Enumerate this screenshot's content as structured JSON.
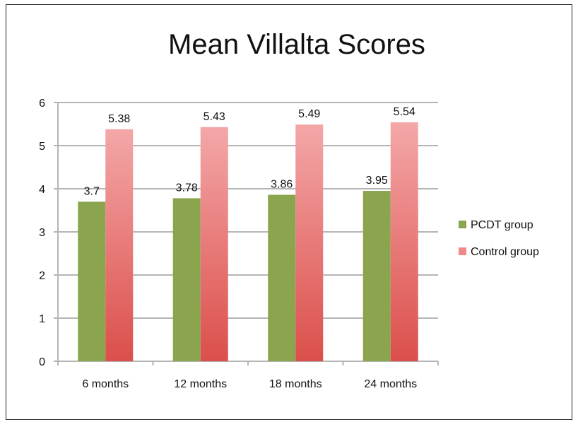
{
  "chart_data": {
    "type": "bar",
    "title": "Mean Villalta Scores",
    "xlabel": "",
    "ylabel": "",
    "categories": [
      "6 months",
      "12 months",
      "18 months",
      "24 months"
    ],
    "series": [
      {
        "name": "PCDT group",
        "values": [
          3.7,
          3.78,
          3.86,
          3.95
        ],
        "color": "#8aa54e"
      },
      {
        "name": "Control group",
        "values": [
          5.38,
          5.43,
          5.49,
          5.54
        ],
        "color_top": "#f4a7a8",
        "color_bottom": "#db4f4b"
      }
    ],
    "data_labels": [
      [
        "3.7",
        "3.78",
        "3.86",
        "3.95"
      ],
      [
        "5.38",
        "5.43",
        "5.49",
        "5.54"
      ]
    ],
    "ylim": [
      0,
      6
    ],
    "yticks": [
      "0",
      "1",
      "2",
      "3",
      "4",
      "5",
      "6"
    ],
    "grid": true,
    "legend_position": "right"
  }
}
